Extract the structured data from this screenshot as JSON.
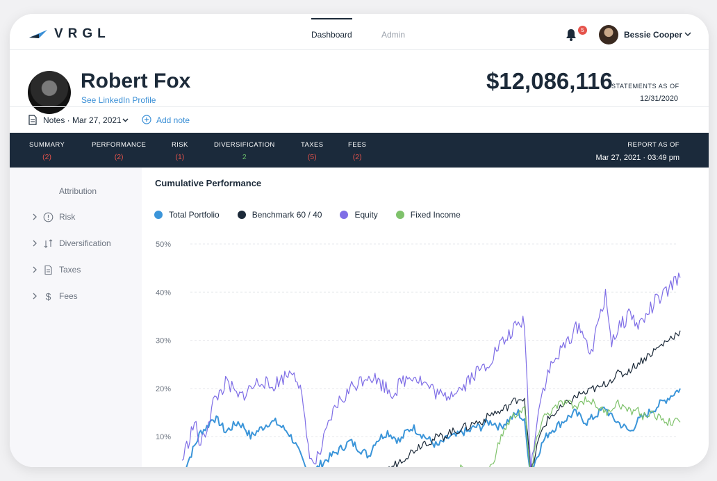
{
  "app": {
    "logo_text": "VRGL"
  },
  "nav": {
    "tabs": [
      {
        "label": "Dashboard",
        "active": true
      },
      {
        "label": "Admin",
        "active": false
      }
    ]
  },
  "user": {
    "name": "Bessie Cooper",
    "notifications": "5"
  },
  "client": {
    "name": "Robert Fox",
    "link_label": "See LinkedIn Profile",
    "total_value": "$12,086,116",
    "statement_label": "STATEMENTS AS OF",
    "statement_date": "12/31/2020"
  },
  "notes": {
    "label": "Notes · Mar 27, 2021",
    "add_label": "Add note"
  },
  "report_tabs": [
    {
      "label": "SUMMARY",
      "count": "(2)"
    },
    {
      "label": "PERFORMANCE",
      "count": "(2)"
    },
    {
      "label": "RISK",
      "count": "(1)"
    },
    {
      "label": "DIVERSIFICATION",
      "count": "2"
    },
    {
      "label": "TAXES",
      "count": "(5)"
    },
    {
      "label": "FEES",
      "count": "(2)"
    }
  ],
  "report": {
    "as_of_label": "REPORT AS OF",
    "as_of_date": "Mar 27, 2021 · 03:49 pm"
  },
  "sidebar": {
    "title": "Attribution",
    "items": [
      {
        "label": "Risk",
        "icon": "info-circle-icon"
      },
      {
        "label": "Diversification",
        "icon": "arrows-updown-icon"
      },
      {
        "label": "Taxes",
        "icon": "document-icon"
      },
      {
        "label": "Fees",
        "icon": "dollar-icon"
      }
    ]
  },
  "colors": {
    "accent": "#3a8fd6",
    "navy": "#1b2a3b",
    "alert": "#e5534b",
    "good": "#6bbf6b"
  },
  "chart_data": {
    "type": "line",
    "title": "Cumulative Performance",
    "xlabel": "",
    "ylabel": "",
    "ylim": [
      0,
      50
    ],
    "y_ticks": [
      "50%",
      "40%",
      "30%",
      "20%",
      "10%"
    ],
    "grid": true,
    "legend_position": "top-left",
    "series": [
      {
        "name": "Total Portfolio",
        "color": "#3b95d9",
        "values": [
          2,
          5,
          8,
          11,
          12,
          14,
          13,
          11,
          12,
          13,
          12,
          10,
          11,
          12,
          13,
          13,
          12,
          11,
          9,
          6,
          3,
          2,
          4,
          5,
          6,
          7,
          8,
          9,
          8,
          7,
          6,
          9,
          10,
          11,
          10,
          9,
          11,
          12,
          11,
          10,
          9,
          8,
          9,
          10,
          10,
          11,
          11,
          12,
          12,
          13,
          13,
          12,
          13,
          14,
          15,
          13,
          2,
          6,
          9,
          11,
          12,
          13,
          14,
          15,
          14,
          13,
          14,
          15,
          16,
          14,
          13,
          12,
          11,
          13,
          14,
          15,
          16,
          17,
          18,
          19,
          20
        ]
      },
      {
        "name": "Benchmark 60 / 40",
        "color": "#1c2a39",
        "values": [
          0,
          0,
          0,
          0,
          0,
          0,
          0,
          0,
          0,
          0,
          0,
          0,
          0,
          0,
          0,
          0,
          0,
          0,
          0,
          0,
          0,
          0,
          0,
          0,
          0,
          0,
          0,
          0,
          0,
          0,
          1,
          2,
          2,
          3,
          4,
          5,
          6,
          7,
          8,
          9,
          9,
          10,
          10,
          11,
          11,
          12,
          12,
          13,
          13,
          14,
          15,
          15,
          16,
          17,
          18,
          18,
          2,
          8,
          12,
          14,
          15,
          16,
          17,
          18,
          19,
          19,
          20,
          20,
          21,
          22,
          23,
          23,
          24,
          25,
          26,
          27,
          28,
          29,
          30,
          31,
          32
        ]
      },
      {
        "name": "Equity",
        "color": "#7f6ee6",
        "values": [
          5,
          9,
          13,
          8,
          12,
          17,
          19,
          21,
          20,
          18,
          19,
          20,
          21,
          22,
          20,
          21,
          22,
          23,
          24,
          20,
          10,
          4,
          6,
          10,
          14,
          17,
          18,
          20,
          21,
          22,
          23,
          22,
          21,
          20,
          19,
          21,
          22,
          23,
          22,
          21,
          20,
          19,
          18,
          19,
          20,
          20,
          22,
          23,
          24,
          25,
          27,
          29,
          30,
          32,
          33,
          34,
          3,
          14,
          20,
          24,
          26,
          28,
          30,
          32,
          33,
          29,
          28,
          35,
          39,
          30,
          32,
          34,
          36,
          33,
          34,
          36,
          38,
          39,
          40,
          42,
          43
        ]
      },
      {
        "name": "Fixed Income",
        "color": "#7fc26b",
        "values": [
          0,
          0,
          0,
          0,
          0,
          0,
          0,
          0,
          0,
          0,
          0,
          0,
          0,
          0,
          0,
          0,
          0,
          0,
          0,
          0,
          0,
          0,
          0,
          0,
          0,
          0,
          0,
          0,
          0,
          0,
          0,
          0,
          0,
          0,
          0,
          0,
          0,
          0,
          0,
          0,
          0,
          0,
          0,
          3,
          2,
          4,
          3,
          2,
          3,
          2,
          5,
          9,
          12,
          14,
          15,
          16,
          1,
          10,
          14,
          15,
          16,
          17,
          17,
          16,
          17,
          18,
          17,
          16,
          15,
          16,
          17,
          16,
          15,
          16,
          14,
          15,
          14,
          14,
          13,
          13,
          13
        ]
      }
    ]
  }
}
